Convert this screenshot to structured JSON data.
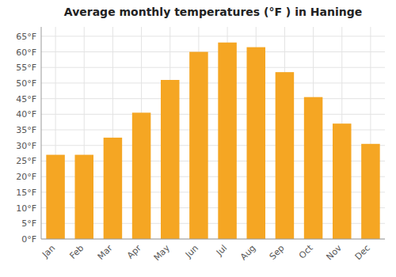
{
  "chart_data": {
    "type": "bar",
    "title": "Average monthly temperatures (°F ) in Haninge",
    "categories": [
      "Jan",
      "Feb",
      "Mar",
      "Apr",
      "May",
      "Jun",
      "Jul",
      "Aug",
      "Sep",
      "Oct",
      "Nov",
      "Dec"
    ],
    "values": [
      27,
      27,
      32.5,
      40.5,
      51,
      60,
      63,
      61.5,
      53.5,
      45.5,
      37,
      30.5
    ],
    "color": "#F5A623",
    "ylim": [
      0,
      68
    ],
    "yticks": [
      {
        "value": 0,
        "label": "0°F"
      },
      {
        "value": 5,
        "label": "5°F"
      },
      {
        "value": 10,
        "label": "10°F"
      },
      {
        "value": 15,
        "label": "15°F"
      },
      {
        "value": 20,
        "label": "20°F"
      },
      {
        "value": 25,
        "label": "25°F"
      },
      {
        "value": 30,
        "label": "30°F"
      },
      {
        "value": 35,
        "label": "35°F"
      },
      {
        "value": 40,
        "label": "40°F"
      },
      {
        "value": 45,
        "label": "45°F"
      },
      {
        "value": 50,
        "label": "50°F"
      },
      {
        "value": 55,
        "label": "55°F"
      },
      {
        "value": 60,
        "label": "60°F"
      },
      {
        "value": 65,
        "label": "65°F"
      }
    ],
    "grid": true
  }
}
